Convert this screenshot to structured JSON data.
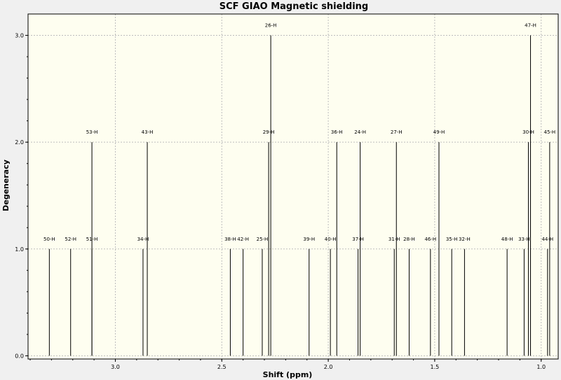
{
  "chart_data": {
    "type": "bar",
    "title": "SCF GIAO Magnetic shielding",
    "xlabel": "Shift (ppm)",
    "ylabel": "Degeneracy",
    "xlim": [
      3.41,
      0.92
    ],
    "ylim": [
      -0.03,
      3.2
    ],
    "x_reversed": true,
    "grid": true,
    "x_ticks": [
      3.0,
      2.5,
      2.0,
      1.5,
      1.0
    ],
    "x_tick_labels": [
      "3.0",
      "2.5",
      "2.0",
      "1.5",
      "1.0"
    ],
    "y_ticks": [
      0.0,
      1.0,
      2.0,
      3.0
    ],
    "y_tick_labels": [
      "0.0",
      "1.0",
      "2.0",
      "3.0"
    ],
    "peaks": [
      {
        "label": "50-H",
        "shift": 3.31,
        "degeneracy": 1
      },
      {
        "label": "52-H",
        "shift": 3.21,
        "degeneracy": 1
      },
      {
        "label": "51-H",
        "shift": 3.11,
        "degeneracy": 1
      },
      {
        "label": "53-H",
        "shift": 3.11,
        "degeneracy": 2
      },
      {
        "label": "34-H",
        "shift": 2.87,
        "degeneracy": 1
      },
      {
        "label": "43-H",
        "shift": 2.85,
        "degeneracy": 2
      },
      {
        "label": "38-H",
        "shift": 2.46,
        "degeneracy": 1
      },
      {
        "label": "42-H",
        "shift": 2.4,
        "degeneracy": 1
      },
      {
        "label": "25-H",
        "shift": 2.31,
        "degeneracy": 1
      },
      {
        "label": "29-H",
        "shift": 2.28,
        "degeneracy": 2
      },
      {
        "label": "26-H",
        "shift": 2.27,
        "degeneracy": 3
      },
      {
        "label": "39-H",
        "shift": 2.09,
        "degeneracy": 1
      },
      {
        "label": "40-H",
        "shift": 1.99,
        "degeneracy": 1
      },
      {
        "label": "36-H",
        "shift": 1.96,
        "degeneracy": 2
      },
      {
        "label": "37-H",
        "shift": 1.86,
        "degeneracy": 1
      },
      {
        "label": "24-H",
        "shift": 1.85,
        "degeneracy": 2
      },
      {
        "label": "31-H",
        "shift": 1.69,
        "degeneracy": 1
      },
      {
        "label": "27-H",
        "shift": 1.68,
        "degeneracy": 2
      },
      {
        "label": "28-H",
        "shift": 1.62,
        "degeneracy": 1
      },
      {
        "label": "46-H",
        "shift": 1.52,
        "degeneracy": 1
      },
      {
        "label": "49-H",
        "shift": 1.48,
        "degeneracy": 2
      },
      {
        "label": "35-H",
        "shift": 1.42,
        "degeneracy": 1
      },
      {
        "label": "32-H",
        "shift": 1.36,
        "degeneracy": 1
      },
      {
        "label": "48-H",
        "shift": 1.16,
        "degeneracy": 1
      },
      {
        "label": "33-H",
        "shift": 1.08,
        "degeneracy": 1
      },
      {
        "label": "30-H",
        "shift": 1.06,
        "degeneracy": 2
      },
      {
        "label": "47-H",
        "shift": 1.05,
        "degeneracy": 3
      },
      {
        "label": "44-H",
        "shift": 0.97,
        "degeneracy": 1
      },
      {
        "label": "45-H",
        "shift": 0.96,
        "degeneracy": 2
      }
    ]
  }
}
